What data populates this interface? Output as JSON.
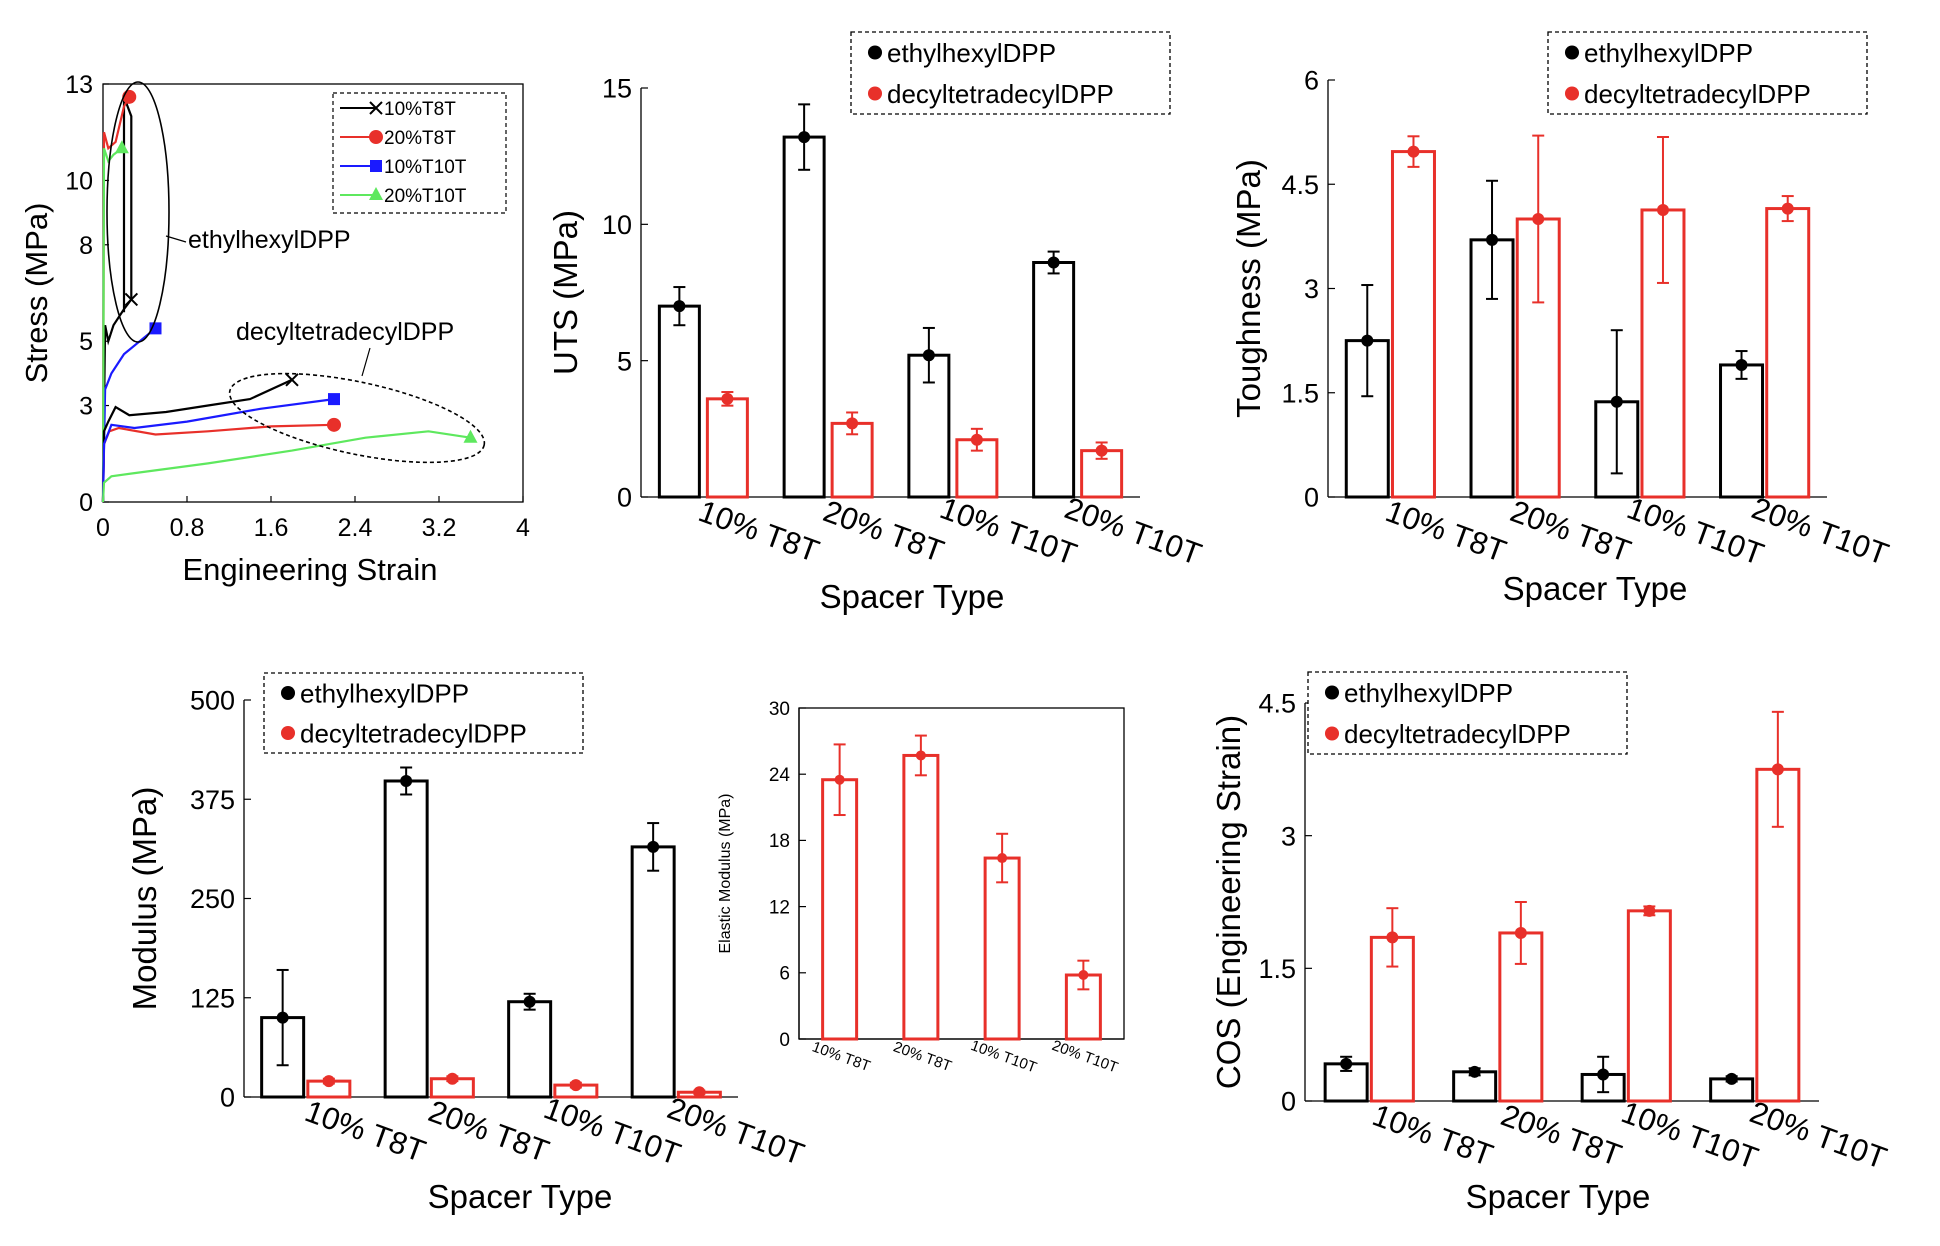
{
  "figure": {
    "colors": {
      "ethyl": "#000000",
      "decyl": "#e8302a",
      "t10t10": "#1a1aff",
      "t10t20": "#5ee85e"
    },
    "group_legend": [
      "ethylhexylDPP",
      "decyltetradecylDPP"
    ],
    "spacer_categories": [
      "10% T8T",
      "20% T8T",
      "10% T10T",
      "20% T10T"
    ],
    "stress_strain": {
      "xlabel": "Engineering Strain",
      "ylabel": "Stress (MPa)",
      "xlim": [
        0,
        4
      ],
      "ylim": [
        0,
        13
      ],
      "xticks": [
        "0",
        "0.8",
        "1.6",
        "2.4",
        "3.2",
        "4"
      ],
      "yticks": [
        "0",
        "3",
        "5",
        "8",
        "10",
        "13"
      ],
      "legend": [
        "10%T8T",
        "20%T8T",
        "10%T10T",
        "20%T10T"
      ],
      "annotations": [
        "ethylhexylDPP",
        "decyltetradecylDPP"
      ]
    },
    "uts": {
      "ylabel": "UTS (MPa)",
      "xlabel": "Spacer Type",
      "ylim": [
        0,
        15
      ],
      "yticks": [
        "0",
        "5",
        "10",
        "15"
      ],
      "ethyl": [
        7.0,
        13.2,
        5.2,
        8.6
      ],
      "ethyl_err": [
        0.7,
        1.2,
        1.0,
        0.4
      ],
      "decyl": [
        3.6,
        2.7,
        2.1,
        1.7
      ],
      "decyl_err": [
        0.25,
        0.4,
        0.4,
        0.3
      ]
    },
    "toughness": {
      "ylabel": "Toughness (MPa)",
      "xlabel": "Spacer Type",
      "ylim": [
        0,
        6
      ],
      "yticks": [
        "0",
        "1.5",
        "3",
        "4.5",
        "6"
      ],
      "ethyl": [
        2.25,
        3.7,
        1.37,
        1.9
      ],
      "ethyl_err": [
        0.8,
        0.85,
        1.03,
        0.2
      ],
      "decyl": [
        4.97,
        4.0,
        4.13,
        4.15
      ],
      "decyl_err": [
        0.22,
        1.2,
        1.05,
        0.18
      ]
    },
    "modulus": {
      "ylabel": "Modulus (MPa)",
      "xlabel": "Spacer Type",
      "ylim": [
        0,
        500
      ],
      "yticks": [
        "0",
        "125",
        "250",
        "375",
        "500"
      ],
      "ethyl": [
        100,
        398,
        120,
        315
      ],
      "ethyl_err": [
        60,
        17,
        10,
        30
      ],
      "decyl": [
        20,
        23,
        15,
        6
      ],
      "decyl_err": [
        3,
        3,
        3,
        2
      ]
    },
    "elastic_inset": {
      "ylabel": "Elastic Modulus (MPa)",
      "ylim": [
        0,
        30
      ],
      "yticks": [
        "0",
        "6",
        "12",
        "18",
        "24",
        "30"
      ],
      "decyl": [
        23.5,
        25.7,
        16.4,
        5.8
      ],
      "decyl_err": [
        3.2,
        1.8,
        2.2,
        1.3
      ]
    },
    "cos": {
      "ylabel": "COS (Engineering Strain)",
      "xlabel": "Spacer Type",
      "ylim": [
        0,
        4.5
      ],
      "yticks": [
        "0",
        "1.5",
        "3",
        "4.5"
      ],
      "ethyl": [
        0.42,
        0.33,
        0.3,
        0.25
      ],
      "ethyl_err": [
        0.08,
        0.04,
        0.2,
        0.03
      ],
      "decyl": [
        1.85,
        1.9,
        2.15,
        3.75
      ],
      "decyl_err": [
        0.33,
        0.35,
        0.05,
        0.65
      ]
    }
  }
}
